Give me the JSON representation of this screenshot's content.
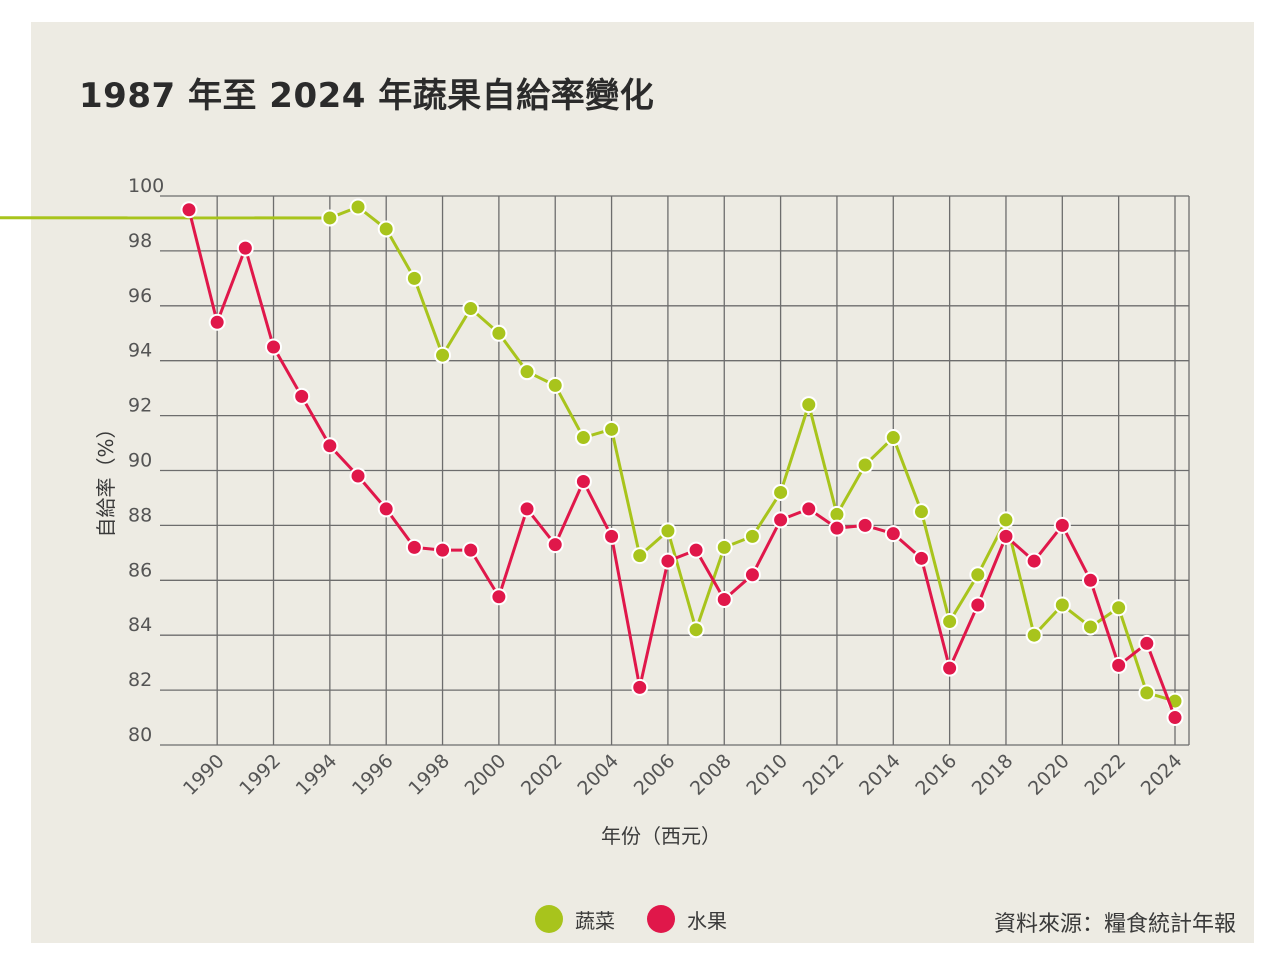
{
  "title": "1987 年至 2024 年蔬果自給率變化",
  "source": "資料來源：糧食統計年報",
  "chart_data": {
    "type": "line",
    "title": "1987 年至 2024 年蔬果自給率變化",
    "xlabel": "年份（西元）",
    "ylabel": "自給率（%）",
    "xlim": [
      1989,
      2024
    ],
    "ylim": [
      80,
      100
    ],
    "yticks": [
      80,
      82,
      84,
      86,
      88,
      90,
      92,
      94,
      96,
      98,
      100
    ],
    "xticks": [
      1990,
      1992,
      1994,
      1996,
      1998,
      2000,
      2002,
      2004,
      2006,
      2008,
      2010,
      2012,
      2014,
      2016,
      2018,
      2020,
      2022,
      2024
    ],
    "grid": true,
    "legend_position": "bottom-center",
    "series": [
      {
        "name": "蔬菜",
        "color": "#a8c41c",
        "x": [
          1994,
          1995,
          1996,
          1997,
          1998,
          1999,
          2000,
          2001,
          2002,
          2003,
          2004,
          2005,
          2006,
          2007,
          2008,
          2009,
          2010,
          2011,
          2012,
          2013,
          2014,
          2015,
          2016,
          2017,
          2018,
          2019,
          2020,
          2021,
          2022,
          2023,
          2024
        ],
        "values": [
          99.2,
          99.6,
          98.8,
          97.0,
          94.2,
          95.9,
          95.0,
          93.6,
          93.1,
          91.2,
          91.5,
          86.9,
          87.8,
          84.2,
          87.2,
          87.6,
          89.2,
          92.4,
          88.4,
          90.2,
          91.2,
          88.5,
          84.5,
          86.2,
          88.2,
          84.0,
          85.1,
          84.3,
          85.0,
          81.9,
          81.6
        ],
        "lead_in_from": [
          93.6,
          100.0
        ]
      },
      {
        "name": "水果",
        "color": "#e0174a",
        "x": [
          1989,
          1990,
          1991,
          1992,
          1993,
          1994,
          1995,
          1996,
          1997,
          1998,
          1999,
          2000,
          2001,
          2002,
          2003,
          2004,
          2005,
          2006,
          2007,
          2008,
          2009,
          2010,
          2011,
          2012,
          2013,
          2014,
          2015,
          2016,
          2017,
          2018,
          2019,
          2020,
          2021,
          2022,
          2023,
          2024
        ],
        "values": [
          99.5,
          95.4,
          98.1,
          94.5,
          92.7,
          90.9,
          89.8,
          88.6,
          87.2,
          87.1,
          87.1,
          85.4,
          88.6,
          87.3,
          89.6,
          87.6,
          82.1,
          86.7,
          87.1,
          85.3,
          86.2,
          88.2,
          88.6,
          87.9,
          88.0,
          87.7,
          86.8,
          82.8,
          85.1,
          87.6,
          86.7,
          88.0,
          86.0,
          82.9,
          83.7,
          81.0
        ]
      }
    ]
  }
}
